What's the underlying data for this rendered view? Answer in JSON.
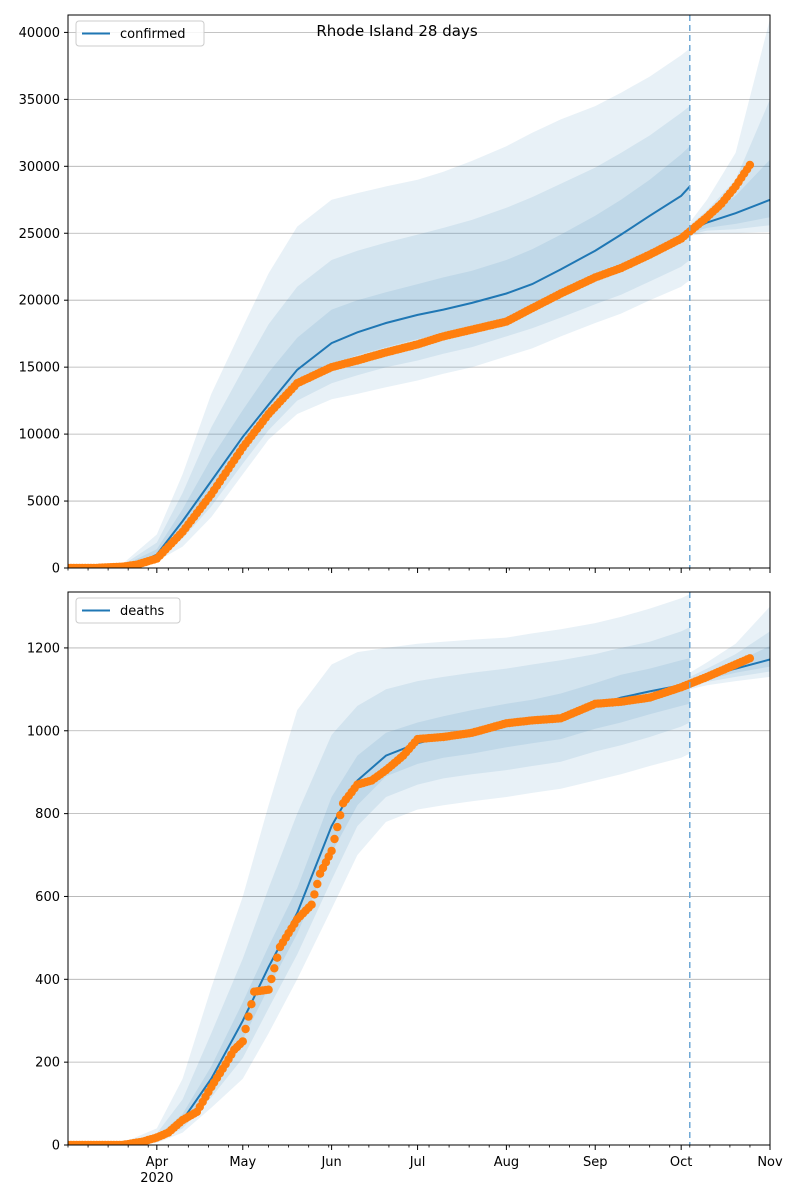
{
  "figure": {
    "title": "Rhode Island 28 days",
    "colors": {
      "model": "#1f77b4",
      "observed": "#ff7f0e",
      "band": "#1f77b4",
      "grid": "#b0b0b0",
      "forecast_line": "#6fa8d6"
    }
  },
  "chart_data": [
    {
      "type": "line",
      "name": "confirmed-panel",
      "legend": {
        "label": "confirmed",
        "placement": "top-left"
      },
      "x_axis": {
        "range": [
          "2020-03-01",
          "2020-11-01"
        ],
        "major_ticks": [
          {
            "date": "2020-04-01",
            "label": "Apr"
          },
          {
            "date": "2020-05-01",
            "label": "May"
          },
          {
            "date": "2020-06-01",
            "label": "Jun"
          },
          {
            "date": "2020-07-01",
            "label": "Jul"
          },
          {
            "date": "2020-08-01",
            "label": "Aug"
          },
          {
            "date": "2020-09-01",
            "label": "Sep"
          },
          {
            "date": "2020-10-01",
            "label": "Oct"
          },
          {
            "date": "2020-11-01",
            "label": "Nov"
          }
        ],
        "year_label": "",
        "tick_labels_visible": false
      },
      "y_axis": {
        "range": [
          0,
          41300
        ],
        "ticks": [
          0,
          5000,
          10000,
          15000,
          20000,
          25000,
          30000,
          35000,
          40000
        ],
        "grid": true
      },
      "forecast_start": "2020-10-04",
      "model": {
        "x": [
          "2020-03-01",
          "2020-03-10",
          "2020-03-20",
          "2020-03-25",
          "2020-04-01",
          "2020-04-10",
          "2020-04-20",
          "2020-05-01",
          "2020-05-10",
          "2020-05-20",
          "2020-06-01",
          "2020-06-10",
          "2020-06-20",
          "2020-07-01",
          "2020-07-10",
          "2020-07-20",
          "2020-08-01",
          "2020-08-10",
          "2020-08-20",
          "2020-09-01",
          "2020-09-10",
          "2020-09-20",
          "2020-10-01",
          "2020-10-04"
        ],
        "y": [
          0,
          10,
          100,
          300,
          1000,
          3500,
          6500,
          9800,
          12200,
          14800,
          16800,
          17600,
          18300,
          18900,
          19300,
          19800,
          20500,
          21200,
          22300,
          23700,
          24900,
          26300,
          27800,
          28500
        ]
      },
      "bands": [
        {
          "x": [
            "2020-03-01",
            "2020-03-20",
            "2020-04-01",
            "2020-04-10",
            "2020-04-20",
            "2020-05-01",
            "2020-05-10",
            "2020-05-20",
            "2020-06-01",
            "2020-06-10",
            "2020-06-20",
            "2020-07-01",
            "2020-07-10",
            "2020-07-20",
            "2020-08-01",
            "2020-08-10",
            "2020-08-20",
            "2020-09-01",
            "2020-09-10",
            "2020-09-20",
            "2020-10-01",
            "2020-10-04"
          ],
          "lo": [
            0,
            50,
            500,
            1600,
            3800,
            7000,
            9600,
            11500,
            12600,
            13000,
            13500,
            14000,
            14500,
            15000,
            15800,
            16400,
            17300,
            18300,
            19000,
            20000,
            21000,
            21500
          ],
          "hi": [
            0,
            300,
            2500,
            7000,
            13000,
            18000,
            22000,
            25500,
            27500,
            28000,
            28500,
            29000,
            29600,
            30400,
            31500,
            32500,
            33500,
            34500,
            35500,
            36700,
            38300,
            38800
          ]
        },
        {
          "x": [
            "2020-03-01",
            "2020-03-20",
            "2020-04-01",
            "2020-04-10",
            "2020-04-20",
            "2020-05-01",
            "2020-05-10",
            "2020-05-20",
            "2020-06-01",
            "2020-06-10",
            "2020-06-20",
            "2020-07-01",
            "2020-07-10",
            "2020-07-20",
            "2020-08-01",
            "2020-08-10",
            "2020-08-20",
            "2020-09-01",
            "2020-09-10",
            "2020-09-20",
            "2020-10-01",
            "2020-10-04"
          ],
          "lo": [
            0,
            70,
            650,
            2200,
            4600,
            7800,
            10300,
            12500,
            13800,
            14400,
            15000,
            15500,
            16000,
            16500,
            17300,
            17900,
            18700,
            19700,
            20400,
            21400,
            22500,
            23000
          ],
          "hi": [
            0,
            220,
            1900,
            5600,
            10500,
            14800,
            18200,
            21000,
            23000,
            23700,
            24300,
            24900,
            25400,
            26000,
            26900,
            27700,
            28700,
            29900,
            31000,
            32300,
            34000,
            34500
          ]
        },
        {
          "x": [
            "2020-03-01",
            "2020-03-20",
            "2020-04-01",
            "2020-04-10",
            "2020-04-20",
            "2020-05-01",
            "2020-05-10",
            "2020-05-20",
            "2020-06-01",
            "2020-06-10",
            "2020-06-20",
            "2020-07-01",
            "2020-07-10",
            "2020-07-20",
            "2020-08-01",
            "2020-08-10",
            "2020-08-20",
            "2020-09-01",
            "2020-09-10",
            "2020-09-20",
            "2020-10-01",
            "2020-10-04"
          ],
          "lo": [
            0,
            85,
            800,
            2800,
            5500,
            8700,
            11200,
            13500,
            15200,
            15900,
            16500,
            17100,
            17500,
            18000,
            18700,
            19300,
            20300,
            21500,
            22400,
            23500,
            24800,
            25300
          ],
          "hi": [
            0,
            160,
            1400,
            4400,
            8200,
            11800,
            14600,
            17200,
            19300,
            20000,
            20600,
            21200,
            21700,
            22200,
            23000,
            23800,
            24900,
            26300,
            27500,
            29000,
            30900,
            31500
          ]
        }
      ],
      "future_model": {
        "x": [
          "2020-10-04",
          "2020-10-10",
          "2020-10-20",
          "2020-11-01"
        ],
        "y": [
          25200,
          25800,
          26500,
          27500
        ]
      },
      "future_bands": [
        {
          "x": [
            "2020-10-04",
            "2020-10-10",
            "2020-10-20",
            "2020-11-01"
          ],
          "lo": [
            24800,
            25000,
            25000,
            25100
          ],
          "hi": [
            25800,
            27500,
            31000,
            41000
          ]
        },
        {
          "x": [
            "2020-10-04",
            "2020-10-10",
            "2020-10-20",
            "2020-11-01"
          ],
          "lo": [
            24900,
            25200,
            25300,
            25600
          ],
          "hi": [
            25600,
            26700,
            29000,
            35000
          ]
        },
        {
          "x": [
            "2020-10-04",
            "2020-10-10",
            "2020-10-20",
            "2020-11-01"
          ],
          "lo": [
            25000,
            25400,
            25700,
            26200
          ],
          "hi": [
            25400,
            26300,
            27800,
            30500
          ]
        }
      ],
      "observed": {
        "x": [
          "2020-03-01",
          "2020-03-10",
          "2020-03-20",
          "2020-03-25",
          "2020-04-01",
          "2020-04-10",
          "2020-04-20",
          "2020-05-01",
          "2020-05-10",
          "2020-05-20",
          "2020-06-01",
          "2020-06-10",
          "2020-06-20",
          "2020-07-01",
          "2020-07-10",
          "2020-07-20",
          "2020-08-01",
          "2020-08-10",
          "2020-08-20",
          "2020-09-01",
          "2020-09-10",
          "2020-09-20",
          "2020-10-01",
          "2020-10-10",
          "2020-10-15",
          "2020-10-20",
          "2020-10-25"
        ],
        "y": [
          0,
          0,
          100,
          250,
          700,
          2700,
          5500,
          9000,
          11500,
          13800,
          15000,
          15500,
          16100,
          16700,
          17300,
          17800,
          18400,
          19400,
          20500,
          21700,
          22400,
          23400,
          24600,
          26200,
          27200,
          28500,
          30100
        ]
      }
    },
    {
      "type": "line",
      "name": "deaths-panel",
      "legend": {
        "label": "deaths",
        "placement": "top-left"
      },
      "x_axis": {
        "range": [
          "2020-03-01",
          "2020-11-01"
        ],
        "major_ticks": [
          {
            "date": "2020-04-01",
            "label": "Apr"
          },
          {
            "date": "2020-05-01",
            "label": "May"
          },
          {
            "date": "2020-06-01",
            "label": "Jun"
          },
          {
            "date": "2020-07-01",
            "label": "Jul"
          },
          {
            "date": "2020-08-01",
            "label": "Aug"
          },
          {
            "date": "2020-09-01",
            "label": "Sep"
          },
          {
            "date": "2020-10-01",
            "label": "Oct"
          },
          {
            "date": "2020-11-01",
            "label": "Nov"
          }
        ],
        "year_label": "2020",
        "tick_labels_visible": true
      },
      "y_axis": {
        "range": [
          0,
          1335
        ],
        "ticks": [
          0,
          200,
          400,
          600,
          800,
          1000,
          1200
        ],
        "grid": true
      },
      "forecast_start": "2020-10-04",
      "model": {
        "x": [
          "2020-03-01",
          "2020-03-20",
          "2020-04-01",
          "2020-04-10",
          "2020-04-20",
          "2020-05-01",
          "2020-05-10",
          "2020-05-20",
          "2020-06-01",
          "2020-06-10",
          "2020-06-20",
          "2020-07-01",
          "2020-07-10",
          "2020-07-20",
          "2020-08-01",
          "2020-08-10",
          "2020-08-20",
          "2020-09-01",
          "2020-09-10",
          "2020-09-20",
          "2020-10-01",
          "2020-10-04"
        ],
        "y": [
          0,
          2,
          15,
          60,
          160,
          300,
          430,
          560,
          770,
          880,
          940,
          970,
          985,
          1000,
          1015,
          1025,
          1035,
          1060,
          1080,
          1095,
          1110,
          1115
        ]
      },
      "bands": [
        {
          "x": [
            "2020-03-01",
            "2020-03-20",
            "2020-04-01",
            "2020-04-10",
            "2020-04-20",
            "2020-05-01",
            "2020-05-10",
            "2020-05-20",
            "2020-06-01",
            "2020-06-10",
            "2020-06-20",
            "2020-07-01",
            "2020-07-10",
            "2020-07-20",
            "2020-08-01",
            "2020-08-10",
            "2020-08-20",
            "2020-09-01",
            "2020-09-10",
            "2020-09-20",
            "2020-10-01",
            "2020-10-04"
          ],
          "lo": [
            0,
            0,
            5,
            30,
            90,
            160,
            270,
            400,
            570,
            700,
            780,
            810,
            820,
            830,
            840,
            850,
            860,
            880,
            895,
            915,
            935,
            945
          ],
          "hi": [
            0,
            5,
            40,
            160,
            380,
            600,
            820,
            1050,
            1160,
            1190,
            1200,
            1210,
            1215,
            1220,
            1225,
            1235,
            1245,
            1260,
            1275,
            1295,
            1320,
            1330
          ]
        },
        {
          "x": [
            "2020-03-01",
            "2020-03-20",
            "2020-04-01",
            "2020-04-10",
            "2020-04-20",
            "2020-05-01",
            "2020-05-10",
            "2020-05-20",
            "2020-06-01",
            "2020-06-10",
            "2020-06-20",
            "2020-07-01",
            "2020-07-10",
            "2020-07-20",
            "2020-08-01",
            "2020-08-10",
            "2020-08-20",
            "2020-09-01",
            "2020-09-10",
            "2020-09-20",
            "2020-10-01",
            "2020-10-04"
          ],
          "lo": [
            0,
            1,
            8,
            40,
            115,
            210,
            330,
            460,
            640,
            770,
            840,
            870,
            885,
            895,
            905,
            915,
            925,
            950,
            965,
            985,
            1010,
            1020
          ],
          "hi": [
            0,
            3,
            28,
            110,
            270,
            450,
            620,
            800,
            990,
            1060,
            1100,
            1120,
            1130,
            1140,
            1150,
            1160,
            1170,
            1185,
            1200,
            1215,
            1240,
            1250
          ]
        },
        {
          "x": [
            "2020-03-01",
            "2020-03-20",
            "2020-04-01",
            "2020-04-10",
            "2020-04-20",
            "2020-05-01",
            "2020-05-10",
            "2020-05-20",
            "2020-06-01",
            "2020-06-10",
            "2020-06-20",
            "2020-07-01",
            "2020-07-10",
            "2020-07-20",
            "2020-08-01",
            "2020-08-10",
            "2020-08-20",
            "2020-09-01",
            "2020-09-10",
            "2020-09-20",
            "2020-10-01",
            "2020-10-04"
          ],
          "lo": [
            0,
            1,
            11,
            50,
            135,
            255,
            380,
            510,
            705,
            820,
            890,
            920,
            935,
            945,
            960,
            970,
            980,
            1005,
            1020,
            1040,
            1060,
            1065
          ],
          "hi": [
            0,
            3,
            20,
            75,
            190,
            345,
            480,
            620,
            840,
            940,
            995,
            1020,
            1035,
            1050,
            1065,
            1075,
            1090,
            1115,
            1135,
            1150,
            1170,
            1175
          ]
        }
      ],
      "future_model": {
        "x": [
          "2020-10-04",
          "2020-10-10",
          "2020-10-20",
          "2020-11-01"
        ],
        "y": [
          1115,
          1130,
          1150,
          1172
        ]
      },
      "future_bands": [
        {
          "x": [
            "2020-10-04",
            "2020-10-10",
            "2020-10-20",
            "2020-11-01"
          ],
          "lo": [
            1100,
            1110,
            1120,
            1130
          ],
          "hi": [
            1140,
            1165,
            1210,
            1300
          ]
        },
        {
          "x": [
            "2020-10-04",
            "2020-10-10",
            "2020-10-20",
            "2020-11-01"
          ],
          "lo": [
            1105,
            1118,
            1130,
            1143
          ],
          "hi": [
            1130,
            1150,
            1185,
            1240
          ]
        },
        {
          "x": [
            "2020-10-04",
            "2020-10-10",
            "2020-10-20",
            "2020-11-01"
          ],
          "lo": [
            1108,
            1123,
            1140,
            1155
          ],
          "hi": [
            1123,
            1140,
            1165,
            1205
          ]
        }
      ],
      "observed": {
        "x": [
          "2020-03-01",
          "2020-03-20",
          "2020-03-27",
          "2020-04-01",
          "2020-04-05",
          "2020-04-10",
          "2020-04-15",
          "2020-04-20",
          "2020-04-25",
          "2020-04-28",
          "2020-05-01",
          "2020-05-05",
          "2020-05-10",
          "2020-05-14",
          "2020-05-20",
          "2020-05-25",
          "2020-05-28",
          "2020-06-01",
          "2020-06-05",
          "2020-06-10",
          "2020-06-15",
          "2020-06-20",
          "2020-06-26",
          "2020-07-01",
          "2020-07-10",
          "2020-07-20",
          "2020-08-01",
          "2020-08-10",
          "2020-08-20",
          "2020-09-01",
          "2020-09-10",
          "2020-09-20",
          "2020-10-01",
          "2020-10-10",
          "2020-10-20",
          "2020-10-25"
        ],
        "y": [
          0,
          0,
          8,
          18,
          30,
          60,
          80,
          140,
          195,
          230,
          250,
          370,
          375,
          478,
          545,
          580,
          655,
          710,
          825,
          870,
          880,
          905,
          940,
          980,
          985,
          995,
          1018,
          1025,
          1030,
          1065,
          1070,
          1080,
          1105,
          1130,
          1160,
          1175
        ]
      }
    }
  ]
}
